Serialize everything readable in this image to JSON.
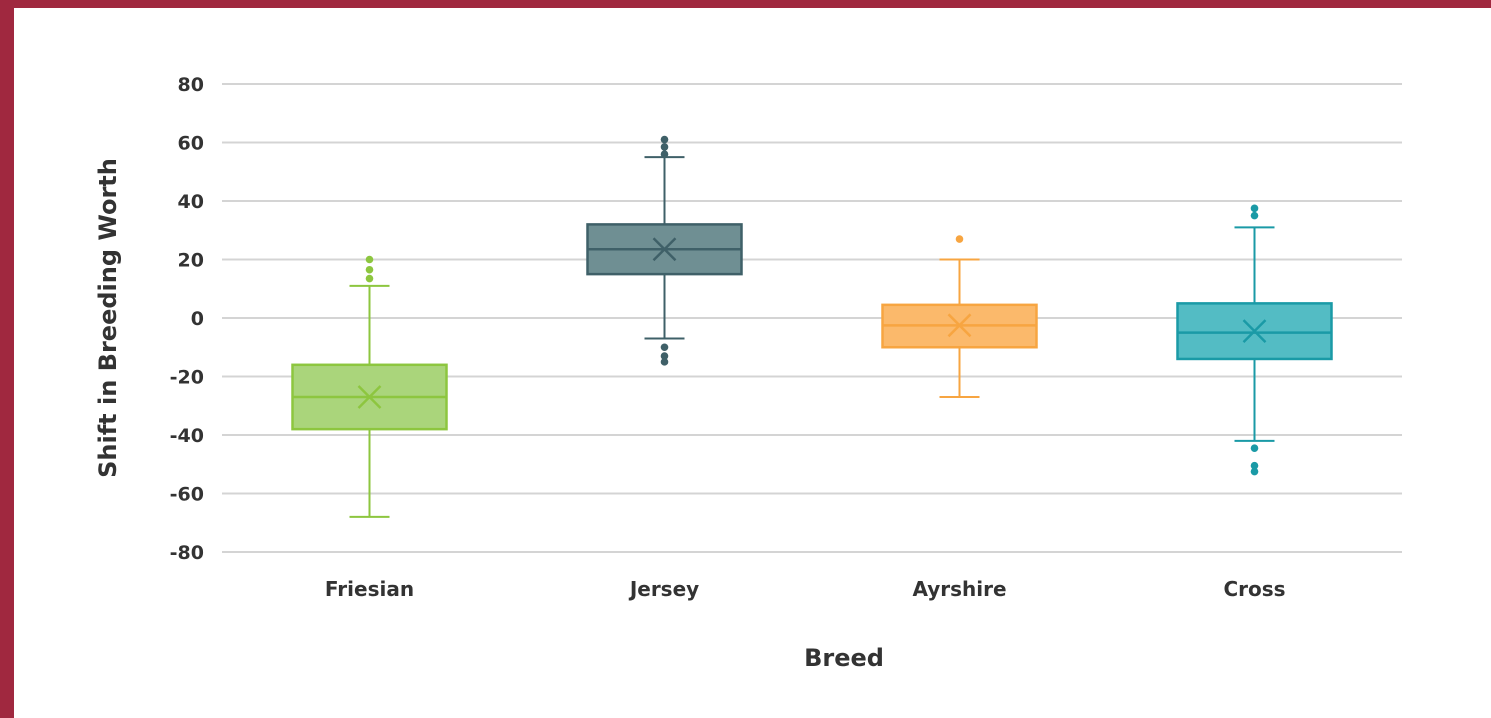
{
  "chart_data": {
    "type": "boxplot",
    "xlabel": "Breed",
    "ylabel": "Shift in Breeding Worth",
    "ylim": [
      -80,
      80
    ],
    "yticks": [
      80,
      60,
      40,
      20,
      0,
      -20,
      -40,
      -60,
      -80
    ],
    "ytick_labels": [
      "80",
      "60",
      "40",
      "20",
      "0",
      "-20",
      "-40",
      "-60",
      "-80"
    ],
    "grid": true,
    "categories": [
      "Friesian",
      "Jersey",
      "Ayrshire",
      "Cross"
    ],
    "series": [
      {
        "category": "Friesian",
        "color": "#8dc63f",
        "fill": "#aad57b",
        "whisker_low": -68,
        "q1": -38,
        "median": -27,
        "mean": -27,
        "q3": -16,
        "whisker_high": 11,
        "outliers": [
          13.5,
          16.5,
          20
        ]
      },
      {
        "category": "Jersey",
        "color": "#3f6068",
        "fill": "#6f8f93",
        "whisker_low": -7,
        "q1": 15,
        "median": 23.5,
        "mean": 23.5,
        "q3": 32,
        "whisker_high": 55,
        "outliers": [
          -10,
          -13,
          -15,
          56,
          58.5,
          61
        ]
      },
      {
        "category": "Ayrshire",
        "color": "#f7a541",
        "fill": "#fbb96b",
        "whisker_low": -27,
        "q1": -10,
        "median": -2.5,
        "mean": -2.5,
        "q3": 4.5,
        "whisker_high": 20,
        "outliers": [
          27
        ]
      },
      {
        "category": "Cross",
        "color": "#1a9aa6",
        "fill": "#53bcc4",
        "whisker_low": -42,
        "q1": -14,
        "median": -5,
        "mean": -4.5,
        "q3": 5,
        "whisker_high": 31,
        "outliers": [
          -44.5,
          -50.5,
          -52.5,
          35,
          37.5
        ]
      }
    ]
  }
}
